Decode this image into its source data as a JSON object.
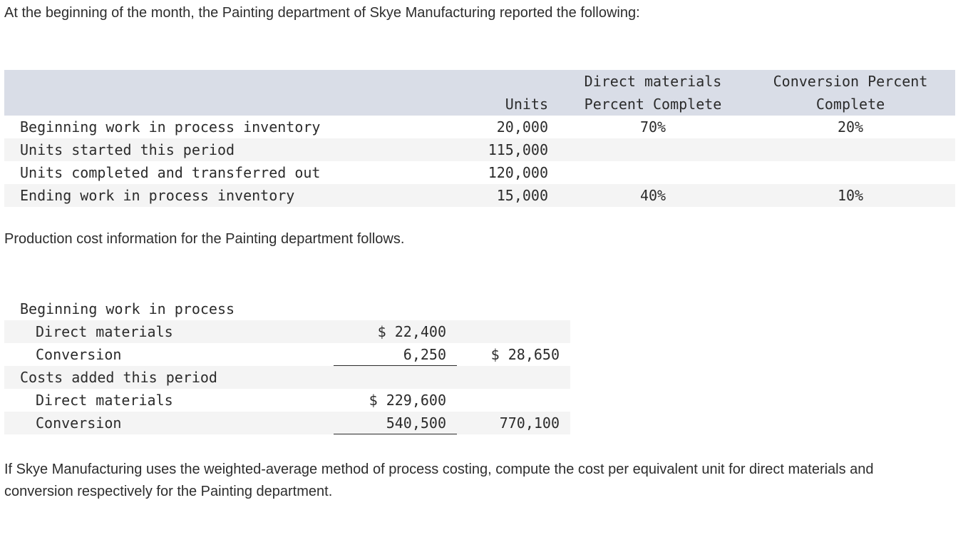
{
  "intro": "At the beginning of the month, the Painting department of Skye Manufacturing reported the following:",
  "units_table": {
    "headers": {
      "units": "Units",
      "dm_line1": "Direct materials",
      "dm_line2": "Percent Complete",
      "cv_line1": "Conversion Percent",
      "cv_line2": "Complete"
    },
    "rows": [
      {
        "label": "Beginning work in process inventory",
        "units": "20,000",
        "dm": "70%",
        "cv": "20%"
      },
      {
        "label": "Units started this period",
        "units": "115,000",
        "dm": "",
        "cv": ""
      },
      {
        "label": "Units completed and transferred out",
        "units": "120,000",
        "dm": "",
        "cv": ""
      },
      {
        "label": "Ending work in process inventory",
        "units": "15,000",
        "dm": "40%",
        "cv": "10%"
      }
    ]
  },
  "mid_text": "Production cost information for the Painting department follows.",
  "cost_table": {
    "rows": [
      {
        "label": "Beginning work in process",
        "col1": "",
        "col2": ""
      },
      {
        "label": "Direct materials",
        "col1": "$ 22,400",
        "col2": ""
      },
      {
        "label": "Conversion",
        "col1": "6,250",
        "col2": "$ 28,650"
      },
      {
        "label": "Costs added this period",
        "col1": "",
        "col2": ""
      },
      {
        "label": "Direct materials",
        "col1": "$ 229,600",
        "col2": ""
      },
      {
        "label": "Conversion",
        "col1": "540,500",
        "col2": "770,100"
      }
    ]
  },
  "question": "If Skye Manufacturing uses the weighted-average method of process costing, compute the cost per equivalent unit for direct materials and conversion respectively for the Painting department."
}
